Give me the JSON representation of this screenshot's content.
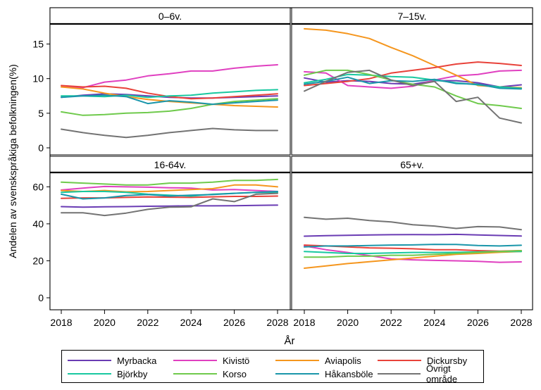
{
  "chart_data": {
    "type": "line",
    "ylabel": "Andelen av svenskspråkiga befolkningen(%)",
    "xlabel": "År",
    "x": [
      2018,
      2019,
      2020,
      2021,
      2022,
      2023,
      2024,
      2025,
      2026,
      2027,
      2028
    ],
    "x_ticks": [
      "2018",
      "2020",
      "2022",
      "2024",
      "2026",
      "2028"
    ],
    "grid": false,
    "legend_position": "bottom",
    "colors": {
      "Myrbacka": "#6a3cb4",
      "Kivistö": "#e040c0",
      "Aviapolis": "#f5961e",
      "Dickursby": "#e8423a",
      "Björkby": "#19c8a0",
      "Korso": "#6fca4c",
      "Håkansböle": "#1a96aa",
      "Övrigt område": "#737373"
    },
    "panels": [
      {
        "title": "0–6v.",
        "ylim": [
          0,
          17.8
        ],
        "y_ticks": [
          "0",
          "5",
          "10",
          "15"
        ],
        "series": [
          {
            "name": "Myrbacka",
            "values": [
              7.3,
              7.6,
              7.8,
              7.7,
              7.5,
              7.3,
              7.2,
              7.2,
              7.3,
              7.4,
              7.5
            ]
          },
          {
            "name": "Kivistö",
            "values": [
              8.8,
              8.7,
              9.5,
              9.8,
              10.4,
              10.7,
              11.1,
              11.1,
              11.5,
              11.8,
              12.0
            ]
          },
          {
            "name": "Aviapolis",
            "values": [
              8.8,
              8.5,
              7.9,
              7.4,
              7.0,
              6.7,
              6.5,
              6.3,
              6.1,
              6.0,
              5.9
            ]
          },
          {
            "name": "Dickursby",
            "values": [
              9.0,
              8.8,
              8.9,
              8.6,
              7.9,
              7.4,
              7.1,
              7.2,
              7.4,
              7.6,
              7.8
            ]
          },
          {
            "name": "Björkby",
            "values": [
              7.5,
              7.5,
              7.4,
              7.6,
              7.3,
              7.5,
              7.6,
              7.9,
              8.1,
              8.3,
              8.4
            ]
          },
          {
            "name": "Korso",
            "values": [
              5.2,
              4.7,
              4.8,
              5.0,
              5.1,
              5.3,
              5.7,
              6.3,
              6.7,
              6.9,
              7.1
            ]
          },
          {
            "name": "Håkansböle",
            "values": [
              7.3,
              7.5,
              7.6,
              7.4,
              6.4,
              6.8,
              6.6,
              6.3,
              6.5,
              6.7,
              6.9
            ]
          },
          {
            "name": "Övrigt område",
            "values": [
              2.7,
              2.2,
              1.8,
              1.5,
              1.8,
              2.2,
              2.5,
              2.8,
              2.6,
              2.5,
              2.5
            ]
          }
        ]
      },
      {
        "title": "7–15v.",
        "ylim": [
          0,
          17.8
        ],
        "y_ticks": [],
        "series": [
          {
            "name": "Myrbacka",
            "values": [
              10.1,
              9.5,
              9.7,
              9.6,
              9.3,
              9.2,
              9.7,
              9.7,
              9.4,
              8.8,
              9.1
            ]
          },
          {
            "name": "Kivistö",
            "values": [
              11.0,
              10.8,
              9.0,
              8.8,
              8.6,
              8.9,
              9.8,
              10.4,
              10.6,
              11.1,
              11.2
            ]
          },
          {
            "name": "Aviapolis",
            "values": [
              17.2,
              17.0,
              16.5,
              15.8,
              14.5,
              13.3,
              11.9,
              10.5,
              9.0,
              8.8,
              8.7
            ]
          },
          {
            "name": "Dickursby",
            "values": [
              9.0,
              9.3,
              9.6,
              10.0,
              10.8,
              11.2,
              11.6,
              12.1,
              12.4,
              12.2,
              11.9
            ]
          },
          {
            "name": "Björkby",
            "values": [
              9.4,
              9.9,
              10.6,
              10.5,
              10.3,
              10.2,
              9.8,
              9.4,
              9.1,
              8.8,
              8.6
            ]
          },
          {
            "name": "Korso",
            "values": [
              10.5,
              11.2,
              11.2,
              10.6,
              9.8,
              9.2,
              8.8,
              7.5,
              6.4,
              6.1,
              5.7
            ]
          },
          {
            "name": "Håkansböle",
            "values": [
              9.2,
              9.6,
              10.2,
              9.3,
              9.7,
              9.6,
              9.9,
              9.3,
              9.2,
              8.6,
              8.5
            ]
          },
          {
            "name": "Övrigt område",
            "values": [
              8.2,
              9.6,
              10.9,
              11.2,
              9.8,
              9.0,
              9.6,
              6.7,
              7.3,
              4.3,
              3.6
            ]
          }
        ]
      },
      {
        "title": "16-64v.",
        "ylim": [
          0,
          67
        ],
        "y_ticks": [
          "0",
          "20",
          "40",
          "60"
        ],
        "series": [
          {
            "name": "Myrbacka",
            "values": [
              49.3,
              49.0,
              49.2,
              49.3,
              49.5,
              49.6,
              49.7,
              49.7,
              49.8,
              50.0,
              50.1
            ]
          },
          {
            "name": "Kivistö",
            "values": [
              58.3,
              59.3,
              60.2,
              60.0,
              59.8,
              59.5,
              59.3,
              58.3,
              58.5,
              58.0,
              57.5
            ]
          },
          {
            "name": "Aviapolis",
            "values": [
              58.0,
              57.5,
              58.0,
              57.3,
              57.5,
              58.0,
              58.5,
              59.0,
              61.0,
              61.0,
              60.0
            ]
          },
          {
            "name": "Dickursby",
            "values": [
              53.8,
              54.0,
              54.0,
              54.3,
              54.5,
              54.4,
              54.3,
              54.6,
              54.8,
              54.8,
              55.0
            ]
          },
          {
            "name": "Björkby",
            "values": [
              57.0,
              57.5,
              57.5,
              57.0,
              56.0,
              55.5,
              55.0,
              56.0,
              56.5,
              57.0,
              57.0
            ]
          },
          {
            "name": "Korso",
            "values": [
              62.5,
              62.0,
              61.5,
              61.0,
              61.0,
              62.0,
              62.0,
              62.5,
              63.5,
              63.5,
              64.0
            ]
          },
          {
            "name": "Håkansböle",
            "values": [
              56.0,
              53.5,
              54.0,
              55.3,
              55.8,
              55.0,
              55.5,
              55.8,
              56.5,
              57.0,
              57.5
            ]
          },
          {
            "name": "Övrigt område",
            "values": [
              46.0,
              46.0,
              44.5,
              45.8,
              47.8,
              49.0,
              49.2,
              53.5,
              52.0,
              56.0,
              56.5
            ]
          }
        ]
      },
      {
        "title": "65+v.",
        "ylim": [
          0,
          67
        ],
        "y_ticks": [],
        "series": [
          {
            "name": "Myrbacka",
            "values": [
              33.3,
              33.6,
              33.8,
              34.0,
              34.1,
              34.2,
              34.1,
              34.3,
              34.0,
              33.7,
              33.4
            ]
          },
          {
            "name": "Kivistö",
            "values": [
              28.0,
              26.0,
              24.5,
              22.8,
              21.0,
              20.5,
              20.2,
              20.0,
              19.7,
              19.2,
              19.4
            ]
          },
          {
            "name": "Aviapolis",
            "values": [
              16.0,
              17.2,
              18.5,
              19.5,
              20.5,
              21.5,
              22.5,
              23.5,
              24.0,
              24.6,
              25.0
            ]
          },
          {
            "name": "Dickursby",
            "values": [
              28.5,
              28.0,
              27.5,
              27.0,
              26.8,
              26.5,
              26.0,
              26.0,
              25.5,
              25.2,
              25.5
            ]
          },
          {
            "name": "Björkby",
            "values": [
              25.0,
              24.5,
              24.0,
              24.0,
              24.3,
              24.5,
              24.5,
              24.6,
              24.8,
              25.0,
              25.0
            ]
          },
          {
            "name": "Korso",
            "values": [
              22.0,
              22.0,
              22.5,
              22.5,
              23.0,
              23.0,
              23.5,
              24.0,
              24.5,
              25.0,
              25.5
            ]
          },
          {
            "name": "Håkansböle",
            "values": [
              27.5,
              28.0,
              28.0,
              28.3,
              28.5,
              28.6,
              28.9,
              28.8,
              28.3,
              28.0,
              28.4
            ]
          },
          {
            "name": "Övrigt område",
            "values": [
              43.5,
              42.5,
              43.0,
              41.8,
              41.0,
              39.5,
              38.8,
              37.5,
              38.5,
              38.3,
              36.8
            ]
          }
        ]
      }
    ]
  }
}
